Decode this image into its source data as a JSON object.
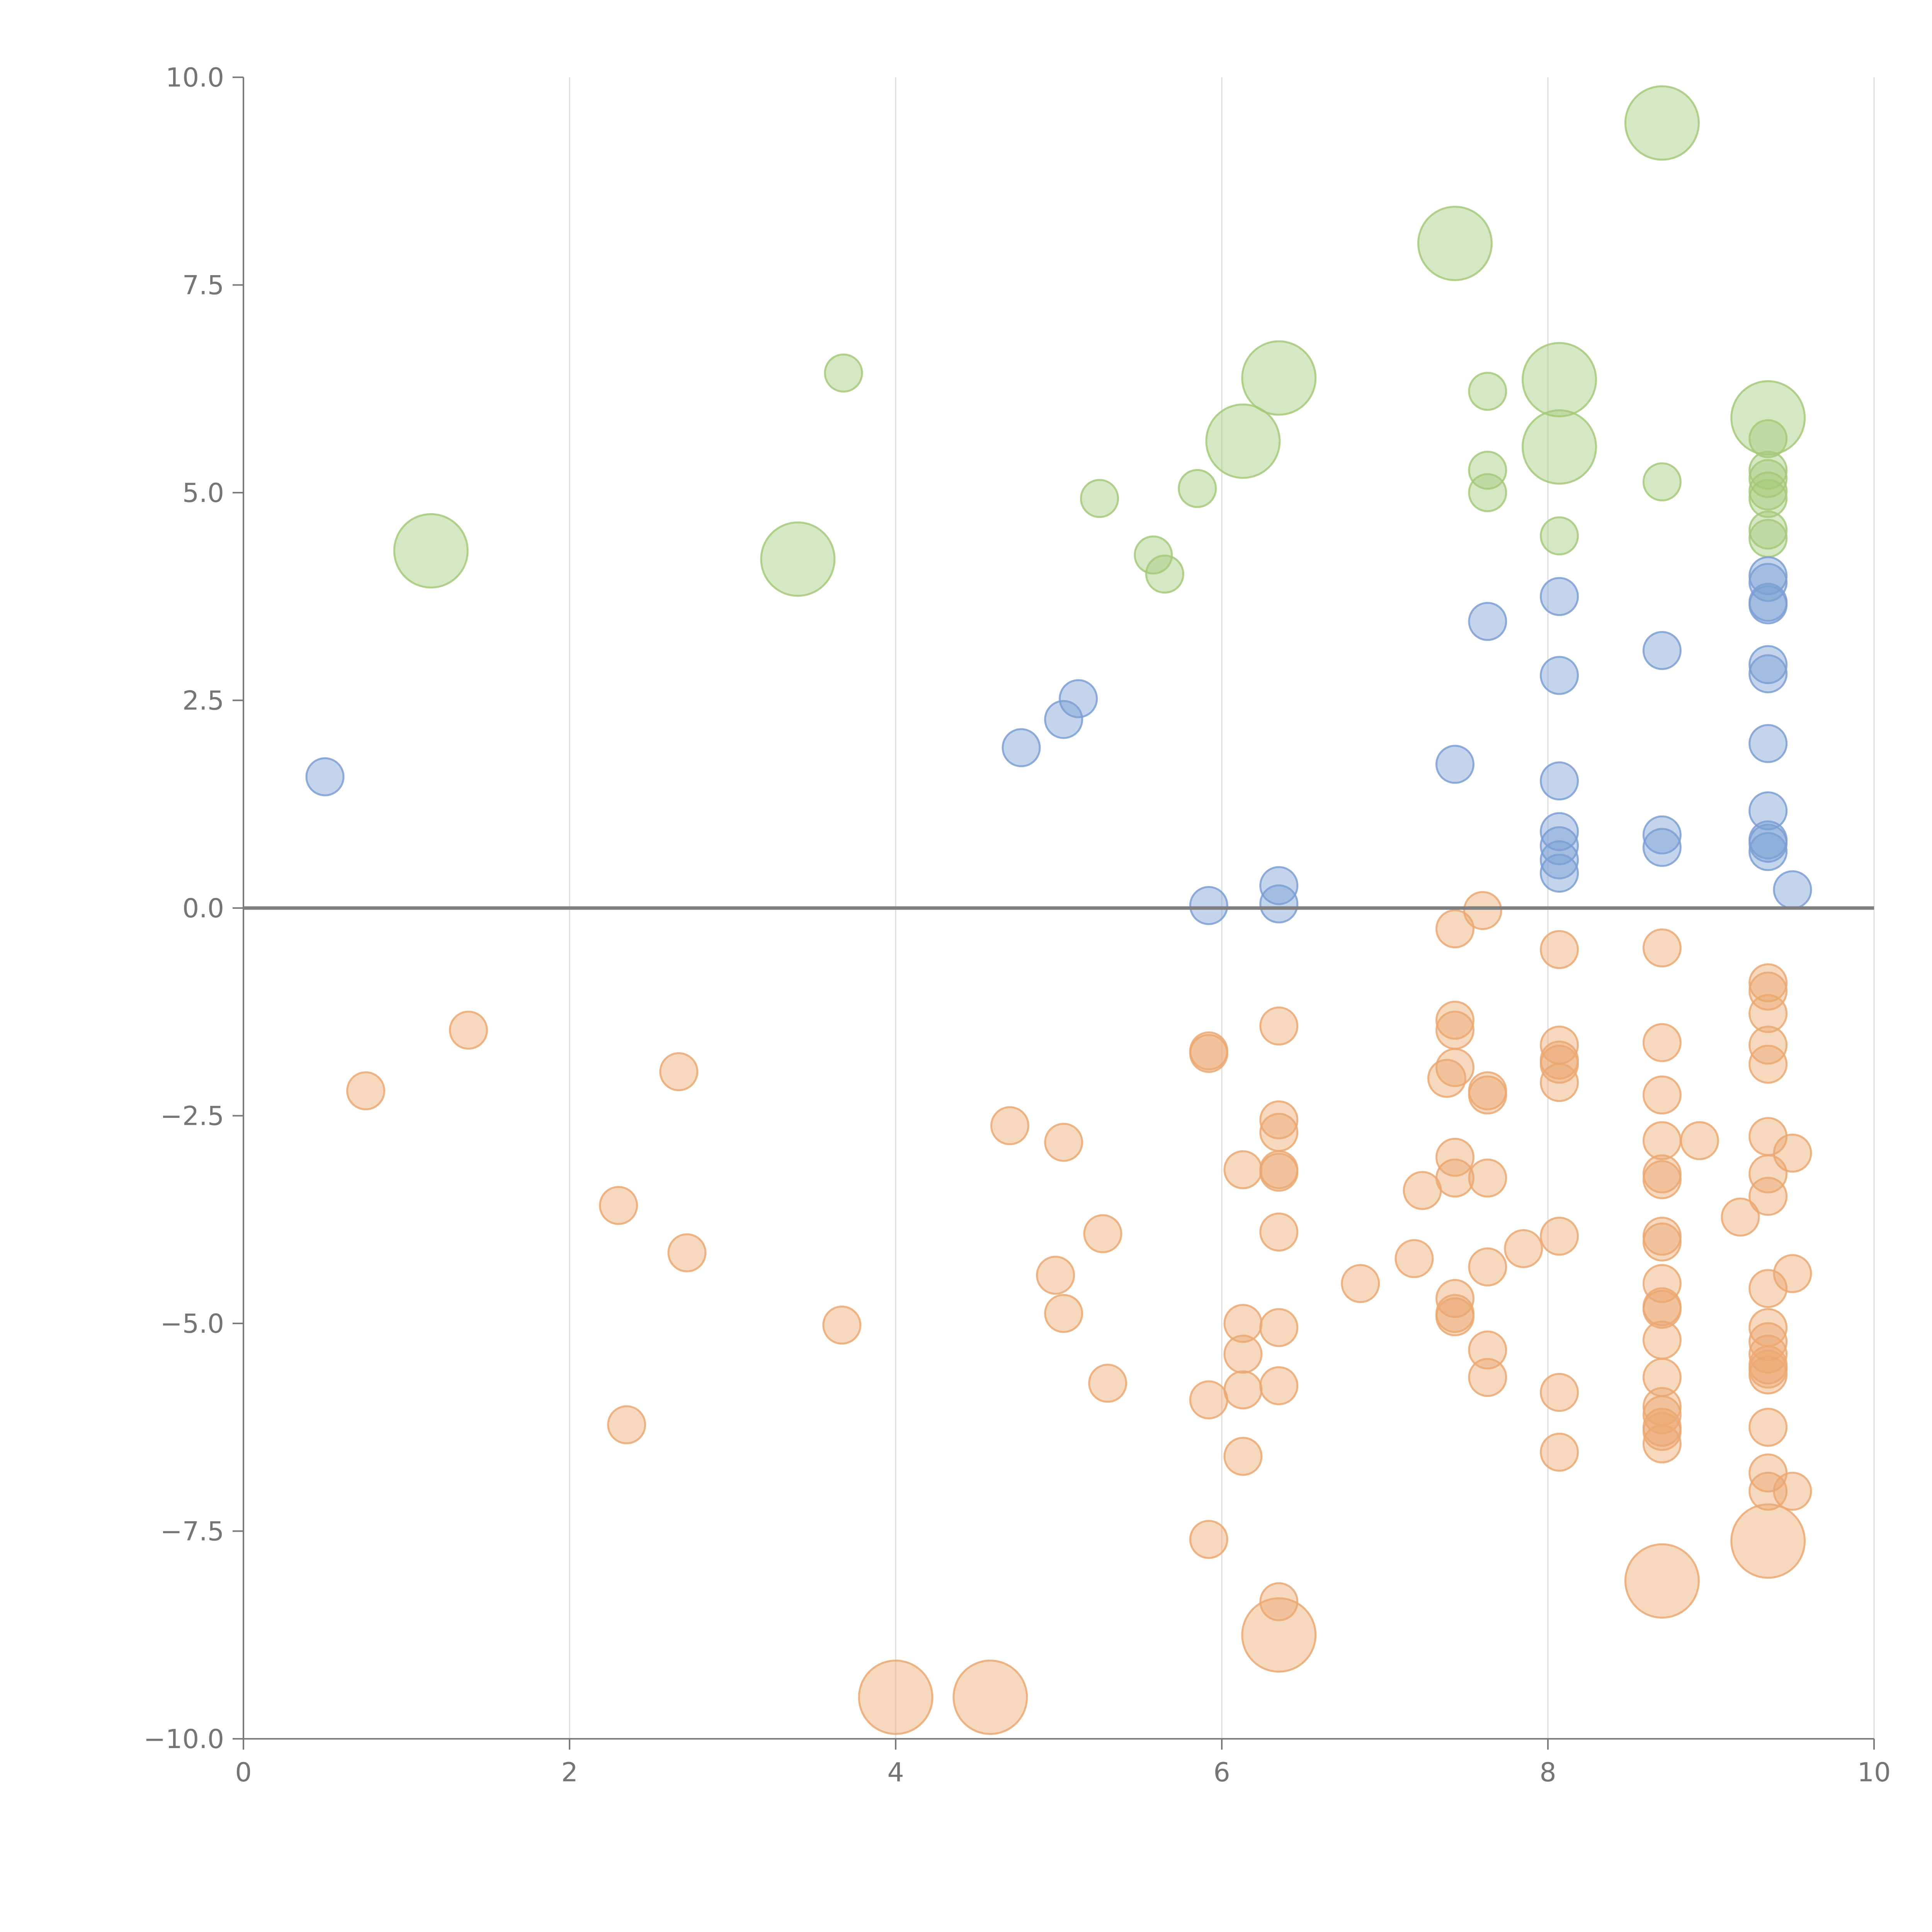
{
  "chart_data": {
    "type": "scatter",
    "title": "",
    "xlabel": "",
    "ylabel": "",
    "xlim": [
      0,
      10
    ],
    "ylim": [
      -10,
      10
    ],
    "grid": "vertical",
    "reference_line_y": 0,
    "x_ticks": [
      0,
      2,
      4,
      6,
      8,
      10
    ],
    "x_tick_labels": [
      "0",
      "2",
      "4",
      "6",
      "8",
      "10"
    ],
    "y_ticks": [
      10,
      7.5,
      5,
      2.5,
      0,
      -2.5,
      -5,
      -7.5,
      -10
    ],
    "y_tick_labels": [
      "10.0",
      "7.5",
      "5.0",
      "2.5",
      "0.0",
      "−2.5",
      "−5.0",
      "−7.5",
      "−10.0"
    ],
    "series": [
      {
        "name": "green",
        "color": "#a5c97a",
        "points": [
          [
            8.7,
            9.45,
            2
          ],
          [
            7.43,
            8.0,
            2
          ],
          [
            6.35,
            6.38,
            2
          ],
          [
            8.07,
            6.36,
            2
          ],
          [
            9.35,
            5.9,
            2
          ],
          [
            6.13,
            5.62,
            2
          ],
          [
            8.07,
            5.55,
            2
          ],
          [
            1.15,
            4.3,
            2
          ],
          [
            3.4,
            4.2,
            2
          ],
          [
            3.68,
            6.44,
            1
          ],
          [
            7.63,
            6.22,
            1
          ],
          [
            9.35,
            5.65,
            1
          ],
          [
            7.63,
            5.27,
            1
          ],
          [
            9.35,
            5.27,
            1
          ],
          [
            9.35,
            5.17,
            1
          ],
          [
            8.7,
            5.13,
            1
          ],
          [
            5.85,
            5.05,
            1
          ],
          [
            9.35,
            5.02,
            1
          ],
          [
            7.63,
            5.0,
            1
          ],
          [
            9.35,
            4.93,
            1
          ],
          [
            5.25,
            4.93,
            1
          ],
          [
            9.35,
            4.55,
            1
          ],
          [
            8.07,
            4.48,
            1
          ],
          [
            9.35,
            4.45,
            1
          ],
          [
            5.58,
            4.25,
            1
          ],
          [
            5.65,
            4.02,
            1
          ]
        ]
      },
      {
        "name": "blue",
        "color": "#7d9fd4",
        "points": [
          [
            9.35,
            4.0,
            1
          ],
          [
            9.35,
            3.92,
            1
          ],
          [
            8.07,
            3.75,
            1
          ],
          [
            9.35,
            3.68,
            1
          ],
          [
            9.35,
            3.65,
            1
          ],
          [
            7.63,
            3.45,
            1
          ],
          [
            8.7,
            3.1,
            1
          ],
          [
            9.35,
            2.93,
            1
          ],
          [
            9.35,
            2.82,
            1
          ],
          [
            8.07,
            2.8,
            1
          ],
          [
            5.12,
            2.52,
            1
          ],
          [
            5.03,
            2.27,
            1
          ],
          [
            9.35,
            1.98,
            1
          ],
          [
            4.77,
            1.93,
            1
          ],
          [
            7.43,
            1.73,
            1
          ],
          [
            0.5,
            1.58,
            1
          ],
          [
            8.07,
            1.53,
            1
          ],
          [
            9.35,
            1.17,
            1
          ],
          [
            8.07,
            0.92,
            1
          ],
          [
            8.7,
            0.88,
            1
          ],
          [
            9.35,
            0.82,
            1
          ],
          [
            9.35,
            0.78,
            1
          ],
          [
            8.07,
            0.75,
            1
          ],
          [
            8.7,
            0.73,
            1
          ],
          [
            9.35,
            0.68,
            1
          ],
          [
            8.07,
            0.58,
            1
          ],
          [
            8.07,
            0.42,
            1
          ],
          [
            6.35,
            0.27,
            1
          ],
          [
            9.5,
            0.22,
            1
          ],
          [
            5.92,
            0.03,
            1
          ],
          [
            6.35,
            0.05,
            1
          ]
        ]
      },
      {
        "name": "orange",
        "color": "#eba872",
        "points": [
          [
            7.6,
            -0.03,
            1
          ],
          [
            7.43,
            -0.25,
            1
          ],
          [
            8.07,
            -0.5,
            1
          ],
          [
            8.7,
            -0.48,
            1
          ],
          [
            9.35,
            -0.9,
            1
          ],
          [
            9.35,
            -1.0,
            1
          ],
          [
            9.35,
            -1.27,
            1
          ],
          [
            7.43,
            -1.35,
            1
          ],
          [
            1.38,
            -1.47,
            1
          ],
          [
            6.35,
            -1.42,
            1
          ],
          [
            7.43,
            -1.47,
            1
          ],
          [
            9.35,
            -1.65,
            1
          ],
          [
            8.07,
            -1.65,
            1
          ],
          [
            8.7,
            -1.62,
            1
          ],
          [
            5.92,
            -1.72,
            1
          ],
          [
            5.92,
            -1.75,
            1
          ],
          [
            8.07,
            -1.83,
            1
          ],
          [
            8.07,
            -1.88,
            1
          ],
          [
            9.35,
            -1.88,
            1
          ],
          [
            7.43,
            -1.92,
            1
          ],
          [
            2.67,
            -1.97,
            1
          ],
          [
            7.38,
            -2.05,
            1
          ],
          [
            8.07,
            -2.1,
            1
          ],
          [
            0.75,
            -2.2,
            1
          ],
          [
            7.63,
            -2.2,
            1
          ],
          [
            7.63,
            -2.25,
            1
          ],
          [
            8.7,
            -2.25,
            1
          ],
          [
            6.35,
            -2.55,
            1
          ],
          [
            4.7,
            -2.62,
            1
          ],
          [
            6.35,
            -2.7,
            1
          ],
          [
            9.35,
            -2.75,
            1
          ],
          [
            8.7,
            -2.8,
            1
          ],
          [
            8.93,
            -2.8,
            1
          ],
          [
            5.03,
            -2.82,
            1
          ],
          [
            9.5,
            -2.95,
            1
          ],
          [
            7.43,
            -3.0,
            1
          ],
          [
            6.13,
            -3.15,
            1
          ],
          [
            6.35,
            -3.15,
            1
          ],
          [
            6.35,
            -3.18,
            1
          ],
          [
            9.35,
            -3.2,
            1
          ],
          [
            8.7,
            -3.2,
            1
          ],
          [
            8.7,
            -3.27,
            1
          ],
          [
            7.63,
            -3.25,
            1
          ],
          [
            7.43,
            -3.25,
            1
          ],
          [
            7.23,
            -3.4,
            1
          ],
          [
            9.35,
            -3.47,
            1
          ],
          [
            2.3,
            -3.58,
            1
          ],
          [
            9.18,
            -3.72,
            1
          ],
          [
            6.35,
            -3.9,
            1
          ],
          [
            5.27,
            -3.92,
            1
          ],
          [
            8.07,
            -3.95,
            1
          ],
          [
            8.7,
            -3.95,
            1
          ],
          [
            8.7,
            -4.02,
            1
          ],
          [
            7.85,
            -4.1,
            1
          ],
          [
            2.72,
            -4.15,
            1
          ],
          [
            7.18,
            -4.22,
            1
          ],
          [
            7.63,
            -4.32,
            1
          ],
          [
            9.5,
            -4.4,
            1
          ],
          [
            4.98,
            -4.42,
            1
          ],
          [
            6.85,
            -4.52,
            1
          ],
          [
            8.7,
            -4.52,
            1
          ],
          [
            9.35,
            -4.58,
            1
          ],
          [
            7.43,
            -4.7,
            1
          ],
          [
            8.7,
            -4.8,
            1
          ],
          [
            8.7,
            -4.83,
            1
          ],
          [
            5.03,
            -4.88,
            1
          ],
          [
            7.43,
            -4.88,
            1
          ],
          [
            7.43,
            -4.92,
            1
          ],
          [
            6.13,
            -5.0,
            1
          ],
          [
            3.67,
            -5.02,
            1
          ],
          [
            9.35,
            -5.05,
            1
          ],
          [
            6.35,
            -5.05,
            1
          ],
          [
            8.7,
            -5.2,
            1
          ],
          [
            9.35,
            -5.22,
            1
          ],
          [
            7.63,
            -5.32,
            1
          ],
          [
            6.13,
            -5.37,
            1
          ],
          [
            9.35,
            -5.37,
            1
          ],
          [
            9.35,
            -5.5,
            1
          ],
          [
            9.35,
            -5.55,
            1
          ],
          [
            9.35,
            -5.62,
            1
          ],
          [
            7.63,
            -5.65,
            1
          ],
          [
            8.7,
            -5.65,
            1
          ],
          [
            5.3,
            -5.72,
            1
          ],
          [
            6.35,
            -5.75,
            1
          ],
          [
            6.13,
            -5.8,
            1
          ],
          [
            8.07,
            -5.83,
            1
          ],
          [
            5.92,
            -5.92,
            1
          ],
          [
            8.7,
            -6.0,
            1
          ],
          [
            8.7,
            -6.1,
            1
          ],
          [
            2.35,
            -6.22,
            1
          ],
          [
            9.35,
            -6.25,
            1
          ],
          [
            8.7,
            -6.25,
            1
          ],
          [
            8.7,
            -6.3,
            1
          ],
          [
            8.7,
            -6.45,
            1
          ],
          [
            8.07,
            -6.55,
            1
          ],
          [
            6.13,
            -6.6,
            1
          ],
          [
            9.35,
            -6.8,
            1
          ],
          [
            9.35,
            -7.02,
            1
          ],
          [
            9.5,
            -7.02,
            1
          ],
          [
            5.92,
            -7.6,
            1
          ],
          [
            6.35,
            -8.35,
            1
          ],
          [
            9.35,
            -7.62,
            2
          ],
          [
            8.7,
            -8.1,
            2
          ],
          [
            6.35,
            -8.75,
            2
          ],
          [
            4.0,
            -9.5,
            2
          ],
          [
            4.58,
            -9.5,
            2
          ]
        ]
      }
    ]
  }
}
